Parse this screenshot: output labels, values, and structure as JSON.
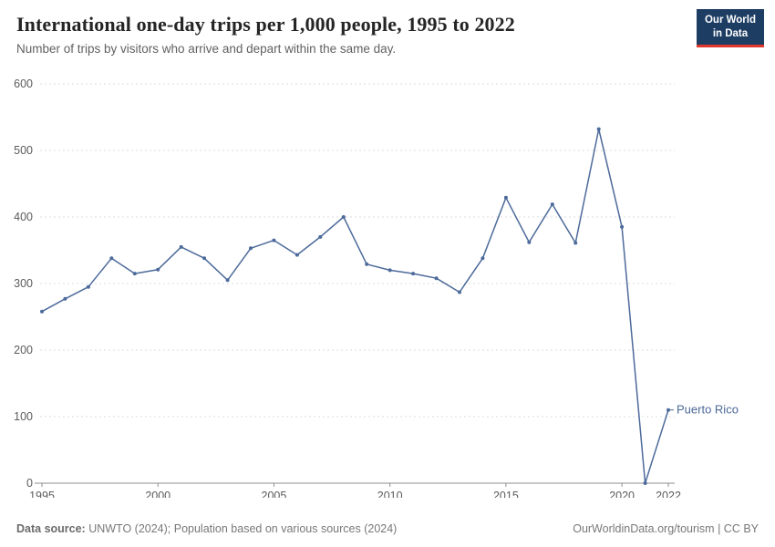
{
  "header": {
    "title": "International one-day trips per 1,000 people, 1995 to 2022",
    "subtitle": "Number of trips by visitors who arrive and depart within the same day.",
    "logo": {
      "line1": "Our World",
      "line2": "in Data",
      "bg_color": "#1d3d63",
      "stripe_color": "#e0362c"
    }
  },
  "chart_data": {
    "type": "line",
    "title": "International one-day trips per 1,000 people, 1995 to 2022",
    "xlabel": "",
    "ylabel": "",
    "ylim": [
      0,
      600
    ],
    "yticks": [
      0,
      100,
      200,
      300,
      400,
      500,
      600
    ],
    "xticks": [
      1995,
      2000,
      2005,
      2010,
      2015,
      2020,
      2022
    ],
    "grid": "horizontal-dashed",
    "legend_position": "end-of-line-label",
    "series": [
      {
        "name": "Puerto Rico",
        "color": "#4c6a9a",
        "x": [
          1995,
          1996,
          1997,
          1998,
          1999,
          2000,
          2001,
          2002,
          2003,
          2004,
          2005,
          2006,
          2007,
          2008,
          2009,
          2010,
          2011,
          2012,
          2013,
          2014,
          2015,
          2016,
          2017,
          2018,
          2019,
          2020,
          2021,
          2022
        ],
        "values": [
          258,
          277,
          295,
          338,
          315,
          321,
          355,
          338,
          305,
          353,
          365,
          343,
          370,
          400,
          329,
          320,
          315,
          308,
          287,
          338,
          429,
          362,
          419,
          361,
          532,
          385,
          0,
          110
        ]
      }
    ]
  },
  "footer": {
    "source_label": "Data source:",
    "source_text": " UNWTO (2024); Population based on various sources (2024)",
    "link_text": "OurWorldinData.org/tourism | CC BY"
  }
}
